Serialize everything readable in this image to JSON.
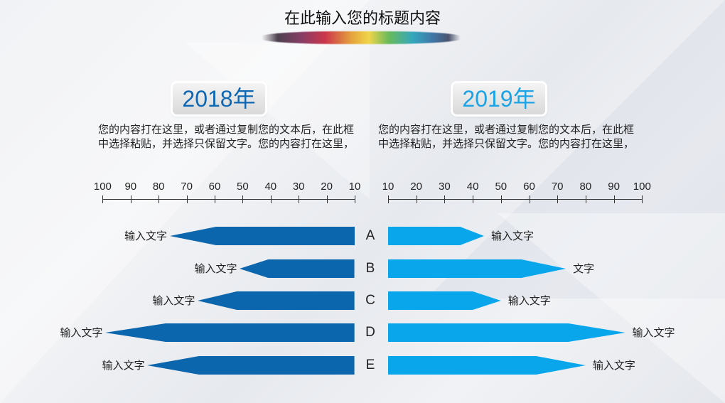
{
  "page": {
    "title": "在此输入您的标题内容"
  },
  "left_panel": {
    "year": "2018年",
    "description": "您的内容打在这里，或者通过复制您的文本后，在此框中选择粘贴，并选择只保留文字。您的内容打在这里，",
    "color": "#0b66ae"
  },
  "right_panel": {
    "year": "2019年",
    "description": "您的内容打在这里，或者通过复制您的文本后，在此框中选择粘贴，并选择只保留文字。您的内容打在这里，",
    "color": "#0aa6ec"
  },
  "chart_data": {
    "type": "bar",
    "orientation": "horizontal-butterfly",
    "title": "在此输入您的标题内容",
    "categories": [
      "A",
      "B",
      "C",
      "D",
      "E"
    ],
    "axis_left_ticks": [
      "100",
      "90",
      "80",
      "70",
      "60",
      "50",
      "40",
      "30",
      "20",
      "10"
    ],
    "axis_right_ticks": [
      "10",
      "20",
      "30",
      "40",
      "50",
      "60",
      "70",
      "80",
      "90",
      "100"
    ],
    "xlim": [
      10,
      100
    ],
    "series": [
      {
        "name": "2018年",
        "side": "left",
        "color": "#0b66ae",
        "values": [
          76,
          51,
          66,
          99,
          84
        ],
        "labels": [
          "输入文字",
          "输入文字",
          "输入文字",
          "输入文字",
          "输入文字"
        ]
      },
      {
        "name": "2019年",
        "side": "right",
        "color": "#0aa6ec",
        "values": [
          44,
          73,
          50,
          94,
          80
        ],
        "labels": [
          "输入文字",
          "文字",
          "输入文字",
          "输入文字",
          "输入文字"
        ]
      }
    ],
    "grid": false,
    "legend": "none"
  }
}
